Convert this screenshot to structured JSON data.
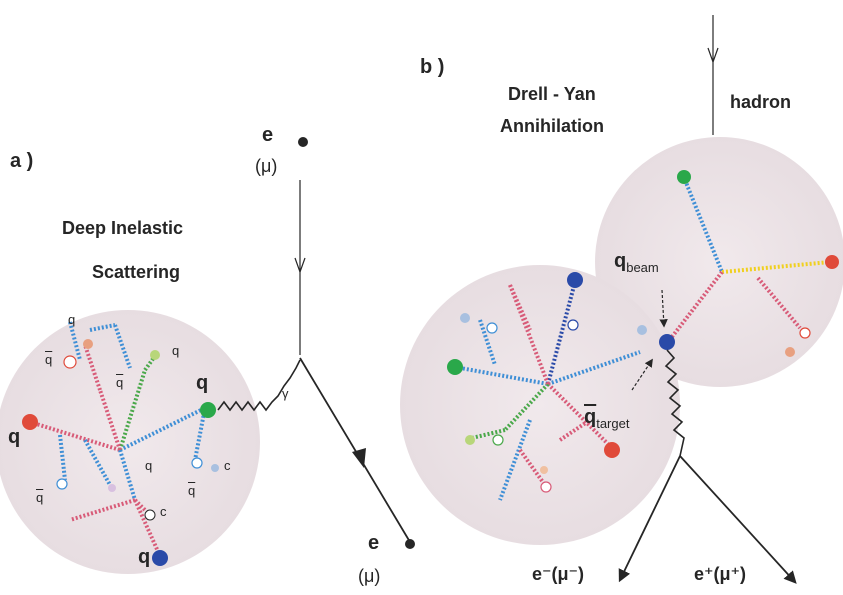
{
  "panel_a": {
    "label": "a )",
    "title_line1": "Deep Inelastic",
    "title_line2": "Scattering",
    "incoming_lepton": "e",
    "incoming_lepton_alt": "(μ)",
    "outgoing_lepton": "e",
    "outgoing_lepton_alt": "(μ)",
    "photon": "γ",
    "struck_quark": "q",
    "parton_labels": [
      "q",
      "q",
      "q",
      "q",
      "q",
      "q",
      "q",
      "c",
      "c",
      "q",
      "q"
    ]
  },
  "panel_b": {
    "label": "b )",
    "title_line1": "Drell - Yan",
    "title_line2": "Annihilation",
    "hadron": "hadron",
    "q_beam_main": "q",
    "q_beam_sub": "beam",
    "q_target_main": "q",
    "q_target_sub": "target",
    "out_left": "e⁻(μ⁻)",
    "out_right": "e⁺(μ⁺)"
  },
  "colors": {
    "ink": "#262626",
    "blob": "#ece4e6",
    "gluon_blue": "#3f8fd6",
    "gluon_pink": "#d85b78",
    "gluon_green": "#4aa84a",
    "gluon_yellow": "#f0d020",
    "quark_red": "#e04a3a",
    "quark_navy": "#2a4aa8",
    "quark_green": "#2aa84a"
  }
}
